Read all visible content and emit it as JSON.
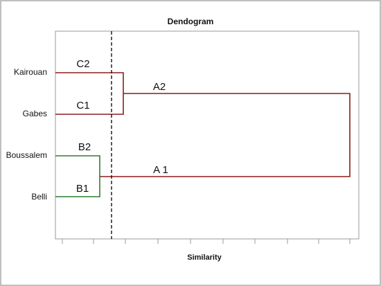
{
  "header": {
    "title": "Dendogram"
  },
  "axis": {
    "label": "Similarity"
  },
  "leaves": [
    "Kairouan",
    "Gabes",
    "Boussalem",
    "Belli"
  ],
  "clusters": {
    "C2": "C2",
    "C1": "C1",
    "B2": "B2",
    "B1": "B1",
    "A2": "A2",
    "A1": "A 1"
  }
}
